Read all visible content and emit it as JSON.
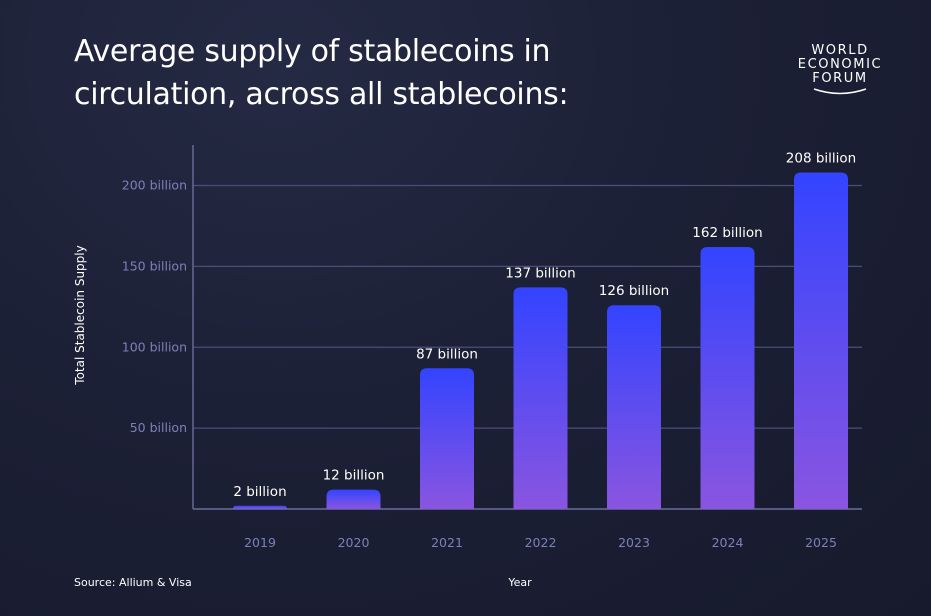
{
  "title": "Average supply of stablecoins in circulation, across all stablecoins:",
  "logo": {
    "line1": "WORLD",
    "line2": "ECONOMIC",
    "line3": "FORUM"
  },
  "source": "Source: Allium & Visa",
  "colors": {
    "bar_top": "#3344ff",
    "bar_bottom": "#8a55e0",
    "grid": "#4a4f78",
    "axis": "#6a6e9c"
  },
  "chart_data": {
    "type": "bar",
    "categories": [
      "2019",
      "2020",
      "2021",
      "2022",
      "2023",
      "2024",
      "2025"
    ],
    "values": [
      2,
      12,
      87,
      137,
      126,
      162,
      208
    ],
    "data_labels": [
      "2 billion",
      "12 billion",
      "87 billion",
      "137 billion",
      "126 billion",
      "162 billion",
      "208 billion"
    ],
    "yticks": [
      50,
      100,
      150,
      200
    ],
    "ytick_labels": [
      "50 billion",
      "100 billion",
      "150 billion",
      "200 billion"
    ],
    "xlabel": "Year",
    "ylabel": "Total Stablecoin Supply",
    "ylim": [
      0,
      230
    ],
    "grid": true
  }
}
